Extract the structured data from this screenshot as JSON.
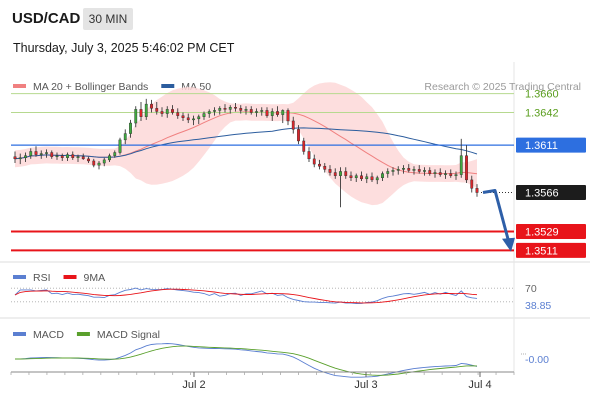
{
  "header": {
    "symbol": "USD/CAD",
    "interval": "30 MIN",
    "datetime": "Thursday, July 3, 2025 5:46:02 PM CET"
  },
  "chart_data": {
    "type": "candlestick",
    "legend": [
      {
        "label": "MA 20 + Bollinger Bands",
        "color": "#f08080"
      },
      {
        "label": "MA 50",
        "color": "#2c5d9e"
      }
    ],
    "watermark": "Research © 2025 Trading Central",
    "price_range": [
      1.35,
      1.369
    ],
    "x_ticks": [
      "Jul 2",
      "Jul 3",
      "Jul 4"
    ],
    "resistance_levels": [
      {
        "value": 1.366,
        "label": "1.3660",
        "color": "#8bc34a"
      },
      {
        "value": 1.3642,
        "label": "1.3642",
        "color": "#8bc34a"
      }
    ],
    "pivot": {
      "value": 1.3611,
      "label": "1.3611",
      "color": "#2d6fe0"
    },
    "last_price": {
      "value": 1.3566,
      "label": "1.3566"
    },
    "support_levels": [
      {
        "value": 1.3529,
        "label": "1.3529",
        "color": "#e8141a"
      },
      {
        "value": 1.3511,
        "label": "1.3511",
        "color": "#e8141a"
      }
    ],
    "candles": [
      [
        1.36,
        1.3605,
        1.3594,
        1.3598
      ],
      [
        1.3598,
        1.3603,
        1.3593,
        1.3599
      ],
      [
        1.3599,
        1.3604,
        1.3595,
        1.3601
      ],
      [
        1.3601,
        1.3608,
        1.3598,
        1.3605
      ],
      [
        1.3605,
        1.361,
        1.36,
        1.3602
      ],
      [
        1.3602,
        1.3606,
        1.3598,
        1.3603
      ],
      [
        1.3603,
        1.3607,
        1.3599,
        1.3604
      ],
      [
        1.3604,
        1.3606,
        1.3598,
        1.36
      ],
      [
        1.36,
        1.3604,
        1.3597,
        1.3601
      ],
      [
        1.3601,
        1.3603,
        1.3596,
        1.3599
      ],
      [
        1.3599,
        1.3604,
        1.3596,
        1.3602
      ],
      [
        1.3602,
        1.3605,
        1.3597,
        1.3599
      ],
      [
        1.3599,
        1.3602,
        1.3595,
        1.36
      ],
      [
        1.36,
        1.3603,
        1.3597,
        1.3598
      ],
      [
        1.3598,
        1.36,
        1.3594,
        1.3596
      ],
      [
        1.3596,
        1.3598,
        1.359,
        1.3592
      ],
      [
        1.3592,
        1.3596,
        1.3588,
        1.3594
      ],
      [
        1.3594,
        1.3599,
        1.3591,
        1.3597
      ],
      [
        1.3597,
        1.3603,
        1.3595,
        1.3601
      ],
      [
        1.3601,
        1.3606,
        1.3599,
        1.3604
      ],
      [
        1.3604,
        1.3618,
        1.3602,
        1.3616
      ],
      [
        1.3616,
        1.3626,
        1.3612,
        1.3622
      ],
      [
        1.3622,
        1.3635,
        1.3618,
        1.3632
      ],
      [
        1.3632,
        1.3648,
        1.3628,
        1.3645
      ],
      [
        1.3645,
        1.3652,
        1.3634,
        1.3638
      ],
      [
        1.3638,
        1.3655,
        1.3635,
        1.365
      ],
      [
        1.365,
        1.3654,
        1.3642,
        1.3646
      ],
      [
        1.3646,
        1.3652,
        1.364,
        1.3643
      ],
      [
        1.3643,
        1.3647,
        1.3638,
        1.3641
      ],
      [
        1.3641,
        1.3648,
        1.3637,
        1.3645
      ],
      [
        1.3645,
        1.3649,
        1.364,
        1.3642
      ],
      [
        1.3642,
        1.3646,
        1.3636,
        1.3639
      ],
      [
        1.3639,
        1.3642,
        1.3634,
        1.3637
      ],
      [
        1.3637,
        1.3641,
        1.3632,
        1.3635
      ],
      [
        1.3635,
        1.3639,
        1.363,
        1.3636
      ],
      [
        1.3636,
        1.364,
        1.3631,
        1.3638
      ],
      [
        1.3638,
        1.3643,
        1.3635,
        1.3641
      ],
      [
        1.3641,
        1.3645,
        1.3637,
        1.3643
      ],
      [
        1.3643,
        1.3647,
        1.3639,
        1.3644
      ],
      [
        1.3644,
        1.3648,
        1.364,
        1.3646
      ],
      [
        1.3646,
        1.365,
        1.3642,
        1.3645
      ],
      [
        1.3645,
        1.3649,
        1.3641,
        1.3647
      ],
      [
        1.3647,
        1.3651,
        1.3643,
        1.3646
      ],
      [
        1.3646,
        1.3649,
        1.3641,
        1.3644
      ],
      [
        1.3644,
        1.3648,
        1.364,
        1.3645
      ],
      [
        1.3645,
        1.3648,
        1.364,
        1.3642
      ],
      [
        1.3642,
        1.3646,
        1.3638,
        1.3643
      ],
      [
        1.3643,
        1.3647,
        1.3639,
        1.3644
      ],
      [
        1.3644,
        1.3647,
        1.3637,
        1.3639
      ],
      [
        1.3639,
        1.3646,
        1.3634,
        1.3643
      ],
      [
        1.3643,
        1.3648,
        1.3638,
        1.364
      ],
      [
        1.364,
        1.3645,
        1.3632,
        1.3644
      ],
      [
        1.3644,
        1.3646,
        1.363,
        1.3634
      ],
      [
        1.3634,
        1.3638,
        1.3622,
        1.3626
      ],
      [
        1.3626,
        1.363,
        1.3612,
        1.3615
      ],
      [
        1.3615,
        1.3618,
        1.3602,
        1.3605
      ],
      [
        1.3605,
        1.3609,
        1.3595,
        1.3598
      ],
      [
        1.3598,
        1.3602,
        1.359,
        1.3593
      ],
      [
        1.3593,
        1.3597,
        1.3588,
        1.3591
      ],
      [
        1.3591,
        1.3594,
        1.3585,
        1.3588
      ],
      [
        1.3588,
        1.3592,
        1.3582,
        1.3585
      ],
      [
        1.3585,
        1.3589,
        1.3579,
        1.3582
      ],
      [
        1.3582,
        1.359,
        1.3552,
        1.3586
      ],
      [
        1.3586,
        1.359,
        1.3579,
        1.3582
      ],
      [
        1.3582,
        1.3586,
        1.3577,
        1.358
      ],
      [
        1.358,
        1.3584,
        1.3576,
        1.3582
      ],
      [
        1.3582,
        1.3586,
        1.3577,
        1.3579
      ],
      [
        1.3579,
        1.3584,
        1.3575,
        1.3581
      ],
      [
        1.3581,
        1.3585,
        1.3576,
        1.3578
      ],
      [
        1.3578,
        1.3582,
        1.3574,
        1.358
      ],
      [
        1.358,
        1.3586,
        1.3577,
        1.3584
      ],
      [
        1.3584,
        1.3589,
        1.358,
        1.3586
      ],
      [
        1.3586,
        1.359,
        1.3582,
        1.3587
      ],
      [
        1.3587,
        1.3591,
        1.3583,
        1.3588
      ],
      [
        1.3588,
        1.3592,
        1.3584,
        1.3589
      ],
      [
        1.3589,
        1.3593,
        1.3585,
        1.3587
      ],
      [
        1.3587,
        1.3591,
        1.3583,
        1.3588
      ],
      [
        1.3588,
        1.3592,
        1.3584,
        1.3586
      ],
      [
        1.3586,
        1.359,
        1.3582,
        1.3587
      ],
      [
        1.3587,
        1.359,
        1.3582,
        1.3584
      ],
      [
        1.3584,
        1.3588,
        1.358,
        1.3585
      ],
      [
        1.3585,
        1.3589,
        1.3581,
        1.3583
      ],
      [
        1.3583,
        1.3587,
        1.3579,
        1.3584
      ],
      [
        1.3584,
        1.3588,
        1.358,
        1.3582
      ],
      [
        1.3582,
        1.3586,
        1.3578,
        1.3583
      ],
      [
        1.3583,
        1.3617,
        1.358,
        1.3601
      ],
      [
        1.3601,
        1.3611,
        1.3575,
        1.3578
      ],
      [
        1.3578,
        1.3582,
        1.3566,
        1.357
      ],
      [
        1.357,
        1.3574,
        1.3562,
        1.3566
      ]
    ],
    "forecast_arrow": {
      "from": 1.3566,
      "to": 1.3524
    },
    "rsi": {
      "legend": [
        {
          "label": "RSI",
          "color": "#5b7fd1"
        },
        {
          "label": "9MA",
          "color": "#e8141a"
        }
      ],
      "levels": [
        70,
        30
      ],
      "level_labels": [
        "70"
      ],
      "value": 38.85,
      "value_label": "38.85",
      "range": [
        0,
        100
      ]
    },
    "macd": {
      "legend": [
        {
          "label": "MACD",
          "color": "#5b7fd1"
        },
        {
          "label": "MACD Signal",
          "color": "#5aa02c"
        }
      ],
      "value_label": "-0.00",
      "range": [
        -0.0012,
        0.0012
      ]
    }
  }
}
